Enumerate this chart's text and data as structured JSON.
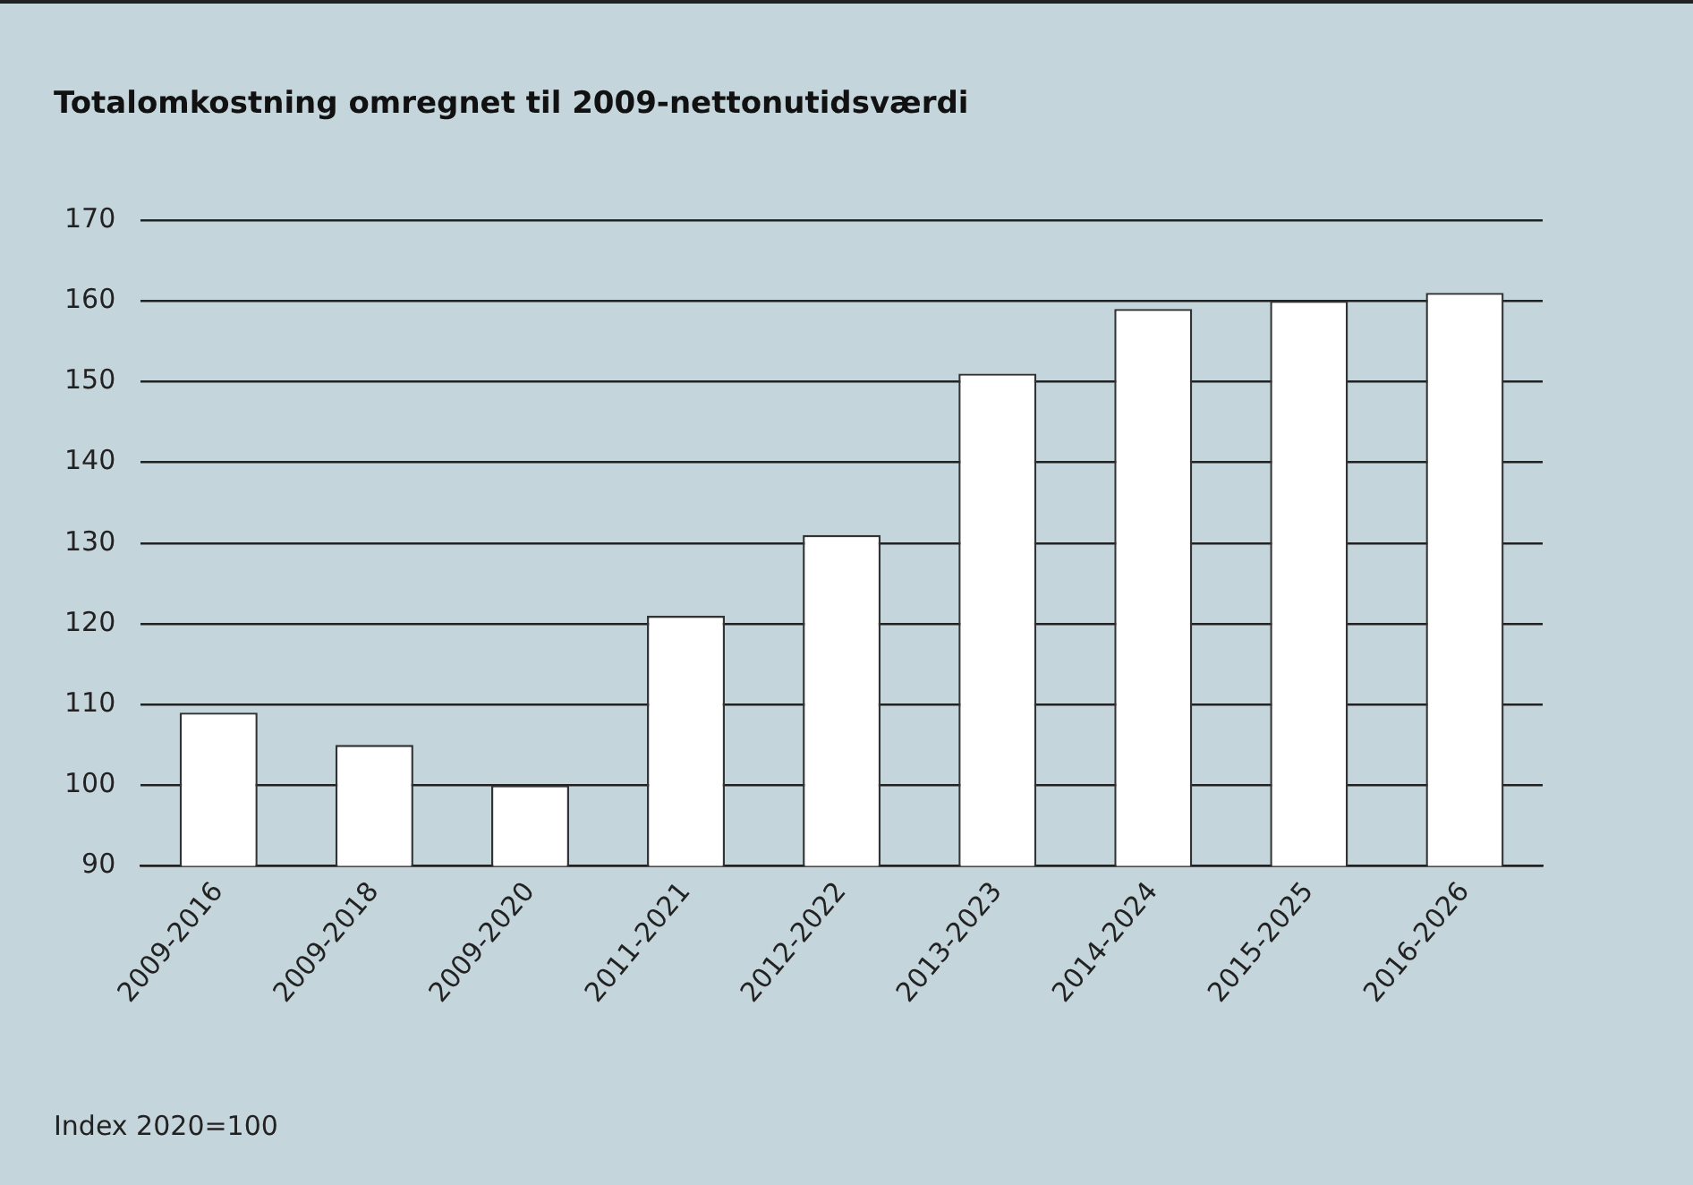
{
  "chart_data": {
    "type": "bar",
    "title": "Totalomkostning omregnet til 2009-nettonutidsværdi",
    "categories": [
      "2009-2016",
      "2009-2018",
      "2009-2020",
      "2011-2021",
      "2012-2022",
      "2013-2023",
      "2014-2024",
      "2015-2025",
      "2016-2026"
    ],
    "values": [
      109,
      105,
      100,
      121,
      131,
      151,
      159,
      160,
      161
    ],
    "color": "#ffffff",
    "ylim": [
      90,
      170
    ],
    "yticks": [
      90,
      100,
      110,
      120,
      130,
      140,
      150,
      160,
      170
    ],
    "grid": "y",
    "legend": false,
    "annotations": [
      "Index 2020=100"
    ]
  }
}
